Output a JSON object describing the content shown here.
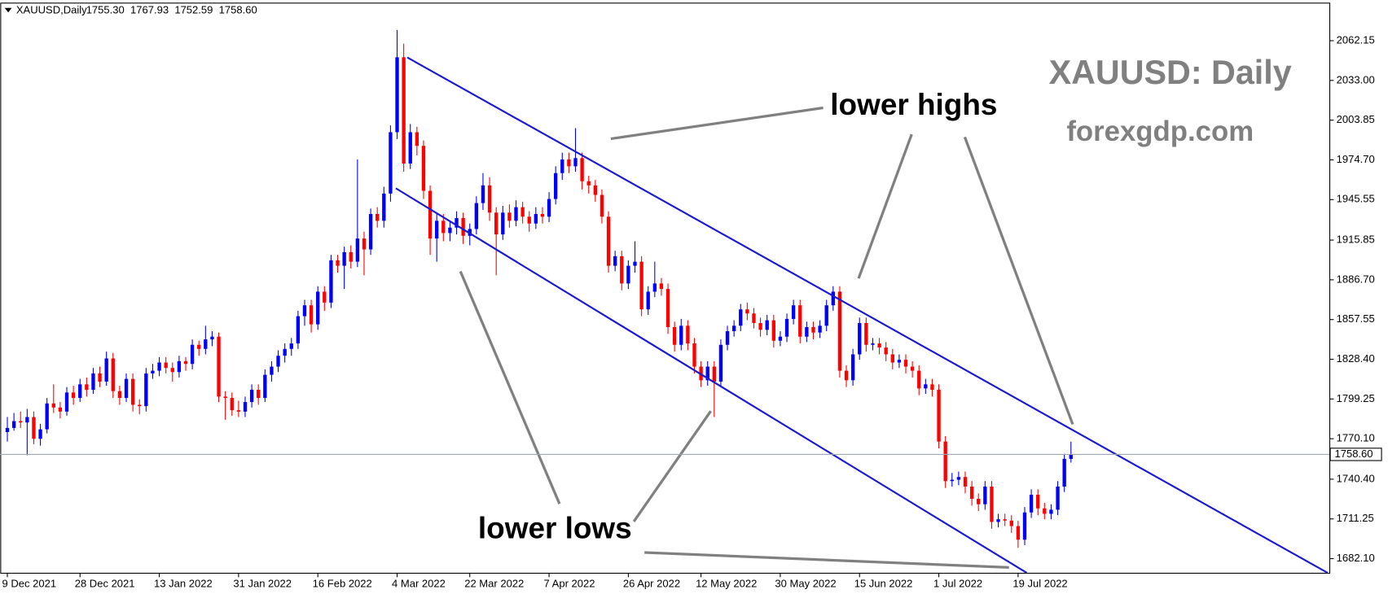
{
  "chart_data": {
    "type": "candlestick",
    "header": {
      "symbol": "XAUUSD,Daily",
      "ohlc": [
        "1755.30",
        "1767.93",
        "1752.59",
        "1758.60"
      ]
    },
    "watermark": {
      "title": "XAUUSD: Daily",
      "site": "forexgdp.com"
    },
    "annotations": [
      "lower highs",
      "lower lows"
    ],
    "up_color": "#0000ff",
    "down_color": "#ff0000",
    "ylim": [
      1671.72,
      2090.07
    ],
    "yticks": [
      {
        "value": 1682.1,
        "label": "1682.10"
      },
      1711.25,
      {
        "value": 1740.4,
        "label": "1740.40"
      },
      {
        "value": 1770.1,
        "label": "1770.10"
      },
      1799.25,
      {
        "value": 1828.4,
        "label": "1828.40"
      },
      1857.55,
      {
        "value": 1886.7,
        "label": "1886.70"
      },
      1915.85,
      1945.55,
      {
        "value": 1974.7,
        "label": "1974.70"
      },
      2003.85,
      {
        "value": 2033,
        "label": "2033.00"
      },
      2062.15
    ],
    "current_price": {
      "value": 1758.6,
      "label": "1758.60"
    },
    "categories": [
      "9 Dec 2021",
      null,
      null,
      null,
      null,
      null,
      null,
      null,
      null,
      null,
      null,
      "28 Dec 2021",
      null,
      null,
      null,
      null,
      null,
      null,
      null,
      null,
      null,
      null,
      null,
      "13 Jan 2022",
      null,
      null,
      null,
      null,
      null,
      null,
      null,
      null,
      null,
      null,
      null,
      "31 Jan 2022",
      null,
      null,
      null,
      null,
      null,
      null,
      null,
      null,
      null,
      null,
      null,
      "16 Feb 2022",
      null,
      null,
      null,
      null,
      null,
      null,
      null,
      null,
      null,
      null,
      null,
      "4 Mar 2022",
      null,
      null,
      null,
      null,
      null,
      null,
      null,
      null,
      null,
      null,
      "22 Mar 2022",
      null,
      null,
      null,
      null,
      null,
      null,
      null,
      null,
      null,
      null,
      null,
      "7 Apr 2022",
      null,
      null,
      null,
      null,
      null,
      null,
      null,
      null,
      null,
      null,
      null,
      "26 Apr 2022",
      null,
      null,
      null,
      null,
      null,
      null,
      null,
      null,
      null,
      null,
      "12 May 2022",
      null,
      null,
      null,
      null,
      null,
      null,
      null,
      null,
      null,
      null,
      null,
      "30 May 2022",
      null,
      null,
      null,
      null,
      null,
      null,
      null,
      null,
      null,
      null,
      null,
      "15 Jun 2022",
      null,
      null,
      null,
      null,
      null,
      null,
      null,
      null,
      null,
      null,
      null,
      "1 Jul 2022",
      null,
      null,
      null,
      null,
      null,
      null,
      null,
      null,
      null,
      null,
      null,
      "19 Jul 2022",
      null,
      null,
      null,
      null,
      null,
      null,
      null,
      null
    ],
    "candles": [
      [
        1775,
        1786,
        1768,
        1778
      ],
      [
        1778,
        1789,
        1776,
        1783
      ],
      [
        1783,
        1790,
        1778,
        1782
      ],
      [
        1782,
        1792,
        1758,
        1786
      ],
      [
        1786,
        1790,
        1766,
        1770
      ],
      [
        1770,
        1781,
        1765,
        1777
      ],
      [
        1777,
        1800,
        1774,
        1796
      ],
      [
        1796,
        1810,
        1789,
        1793
      ],
      [
        1793,
        1797,
        1785,
        1790
      ],
      [
        1790,
        1808,
        1787,
        1804
      ],
      [
        1804,
        1809,
        1795,
        1800
      ],
      [
        1800,
        1814,
        1797,
        1810
      ],
      [
        1810,
        1815,
        1801,
        1806
      ],
      [
        1806,
        1822,
        1803,
        1818
      ],
      [
        1818,
        1823,
        1808,
        1812
      ],
      [
        1812,
        1834,
        1809,
        1829
      ],
      [
        1829,
        1833,
        1800,
        1805
      ],
      [
        1805,
        1809,
        1795,
        1800
      ],
      [
        1800,
        1818,
        1797,
        1814
      ],
      [
        1814,
        1818,
        1790,
        1795
      ],
      [
        1795,
        1799,
        1788,
        1794
      ],
      [
        1794,
        1822,
        1790,
        1818
      ],
      [
        1818,
        1825,
        1814,
        1820
      ],
      [
        1820,
        1830,
        1816,
        1826
      ],
      [
        1826,
        1830,
        1818,
        1822
      ],
      [
        1822,
        1826,
        1812,
        1819
      ],
      [
        1819,
        1831,
        1815,
        1827
      ],
      [
        1827,
        1830,
        1820,
        1825
      ],
      [
        1825,
        1843,
        1821,
        1839
      ],
      [
        1839,
        1842,
        1831,
        1836
      ],
      [
        1836,
        1853,
        1832,
        1843
      ],
      [
        1843,
        1849,
        1838,
        1845
      ],
      [
        1845,
        1848,
        1797,
        1801
      ],
      [
        1801,
        1805,
        1784,
        1800
      ],
      [
        1800,
        1804,
        1787,
        1791
      ],
      [
        1791,
        1798,
        1786,
        1790
      ],
      [
        1790,
        1801,
        1786,
        1797
      ],
      [
        1797,
        1810,
        1793,
        1806
      ],
      [
        1806,
        1810,
        1795,
        1800
      ],
      [
        1800,
        1821,
        1797,
        1817
      ],
      [
        1817,
        1827,
        1812,
        1823
      ],
      [
        1823,
        1835,
        1819,
        1831
      ],
      [
        1831,
        1840,
        1826,
        1836
      ],
      [
        1836,
        1844,
        1831,
        1840
      ],
      [
        1840,
        1864,
        1836,
        1860
      ],
      [
        1860,
        1872,
        1853,
        1868
      ],
      [
        1868,
        1872,
        1848,
        1854
      ],
      [
        1854,
        1882,
        1850,
        1878
      ],
      [
        1878,
        1882,
        1864,
        1870
      ],
      [
        1870,
        1905,
        1866,
        1901
      ],
      [
        1901,
        1905,
        1892,
        1897
      ],
      [
        1897,
        1911,
        1880,
        1907
      ],
      [
        1907,
        1912,
        1895,
        1900
      ],
      [
        1900,
        1975,
        1896,
        1917
      ],
      [
        1917,
        1922,
        1890,
        1909
      ],
      [
        1909,
        1939,
        1905,
        1935
      ],
      [
        1935,
        1940,
        1925,
        1930
      ],
      [
        1930,
        1955,
        1925,
        1950
      ],
      [
        1950,
        2000,
        1944,
        1995
      ],
      [
        1995,
        2070,
        1990,
        2050
      ],
      [
        2050,
        2060,
        1966,
        1972
      ],
      [
        1972,
        2001,
        1968,
        1995
      ],
      [
        1995,
        1999,
        1978,
        1985
      ],
      [
        1985,
        1989,
        1946,
        1952
      ],
      [
        1952,
        1956,
        1905,
        1917
      ],
      [
        1917,
        1936,
        1900,
        1930
      ],
      [
        1930,
        1935,
        1915,
        1921
      ],
      [
        1921,
        1930,
        1915,
        1925
      ],
      [
        1925,
        1937,
        1920,
        1932
      ],
      [
        1932,
        1936,
        1913,
        1919
      ],
      [
        1919,
        1928,
        1912,
        1924
      ],
      [
        1924,
        1948,
        1920,
        1943
      ],
      [
        1943,
        1965,
        1938,
        1956
      ],
      [
        1956,
        1962,
        1930,
        1936
      ],
      [
        1936,
        1940,
        1890,
        1920
      ],
      [
        1920,
        1941,
        1916,
        1936
      ],
      [
        1936,
        1942,
        1925,
        1930
      ],
      [
        1930,
        1945,
        1926,
        1940
      ],
      [
        1940,
        1944,
        1928,
        1933
      ],
      [
        1933,
        1937,
        1922,
        1928
      ],
      [
        1928,
        1940,
        1924,
        1935
      ],
      [
        1935,
        1940,
        1928,
        1933
      ],
      [
        1933,
        1951,
        1929,
        1946
      ],
      [
        1946,
        1970,
        1942,
        1965
      ],
      [
        1965,
        1980,
        1960,
        1975
      ],
      [
        1975,
        1980,
        1965,
        1970
      ],
      [
        1970,
        1998,
        1966,
        1976
      ],
      [
        1976,
        1980,
        1953,
        1959
      ],
      [
        1959,
        1963,
        1950,
        1956
      ],
      [
        1956,
        1960,
        1944,
        1949
      ],
      [
        1949,
        1953,
        1928,
        1933
      ],
      [
        1933,
        1937,
        1892,
        1897
      ],
      [
        1897,
        1908,
        1893,
        1904
      ],
      [
        1904,
        1908,
        1879,
        1884
      ],
      [
        1884,
        1901,
        1880,
        1897
      ],
      [
        1897,
        1915,
        1892,
        1900
      ],
      [
        1900,
        1904,
        1860,
        1865
      ],
      [
        1865,
        1882,
        1861,
        1878
      ],
      [
        1878,
        1900,
        1874,
        1884
      ],
      [
        1884,
        1888,
        1875,
        1880
      ],
      [
        1880,
        1884,
        1847,
        1852
      ],
      [
        1852,
        1856,
        1834,
        1839
      ],
      [
        1839,
        1858,
        1835,
        1853
      ],
      [
        1853,
        1857,
        1835,
        1840
      ],
      [
        1840,
        1844,
        1818,
        1823
      ],
      [
        1823,
        1827,
        1808,
        1813
      ],
      [
        1813,
        1827,
        1809,
        1823
      ],
      [
        1823,
        1827,
        1786,
        1812
      ],
      [
        1812,
        1843,
        1808,
        1839
      ],
      [
        1839,
        1853,
        1835,
        1849
      ],
      [
        1849,
        1857,
        1845,
        1853
      ],
      [
        1853,
        1869,
        1849,
        1865
      ],
      [
        1865,
        1870,
        1857,
        1862
      ],
      [
        1862,
        1866,
        1851,
        1855
      ],
      [
        1855,
        1859,
        1845,
        1850
      ],
      [
        1850,
        1861,
        1846,
        1857
      ],
      [
        1857,
        1861,
        1837,
        1842
      ],
      [
        1842,
        1849,
        1838,
        1845
      ],
      [
        1845,
        1862,
        1841,
        1858
      ],
      [
        1858,
        1872,
        1854,
        1868
      ],
      [
        1868,
        1872,
        1840,
        1845
      ],
      [
        1845,
        1856,
        1841,
        1852
      ],
      [
        1852,
        1856,
        1843,
        1848
      ],
      [
        1848,
        1857,
        1844,
        1853
      ],
      [
        1853,
        1872,
        1849,
        1868
      ],
      [
        1868,
        1882,
        1864,
        1878
      ],
      [
        1878,
        1882,
        1815,
        1820
      ],
      [
        1820,
        1824,
        1808,
        1813
      ],
      [
        1813,
        1836,
        1809,
        1832
      ],
      [
        1832,
        1859,
        1828,
        1855
      ],
      [
        1855,
        1859,
        1834,
        1839
      ],
      [
        1839,
        1844,
        1835,
        1840
      ],
      [
        1840,
        1844,
        1832,
        1837
      ],
      [
        1837,
        1841,
        1827,
        1832
      ],
      [
        1832,
        1836,
        1821,
        1826
      ],
      [
        1826,
        1832,
        1822,
        1828
      ],
      [
        1828,
        1832,
        1818,
        1823
      ],
      [
        1823,
        1827,
        1815,
        1820
      ],
      [
        1820,
        1824,
        1802,
        1807
      ],
      [
        1807,
        1814,
        1803,
        1810
      ],
      [
        1810,
        1814,
        1801,
        1806
      ],
      [
        1806,
        1810,
        1763,
        1768
      ],
      [
        1768,
        1772,
        1734,
        1739
      ],
      [
        1739,
        1745,
        1735,
        1740
      ],
      [
        1740,
        1746,
        1736,
        1742
      ],
      [
        1742,
        1746,
        1730,
        1735
      ],
      [
        1735,
        1739,
        1721,
        1726
      ],
      [
        1726,
        1730,
        1717,
        1722
      ],
      [
        1722,
        1739,
        1718,
        1735
      ],
      [
        1735,
        1739,
        1704,
        1709
      ],
      [
        1709,
        1715,
        1705,
        1711
      ],
      [
        1711,
        1715,
        1706,
        1710
      ],
      [
        1710,
        1714,
        1701,
        1706
      ],
      [
        1706,
        1710,
        1690,
        1696
      ],
      [
        1696,
        1720,
        1692,
        1716
      ],
      [
        1716,
        1733,
        1712,
        1729
      ],
      [
        1729,
        1733,
        1714,
        1719
      ],
      [
        1719,
        1723,
        1711,
        1715
      ],
      [
        1715,
        1722,
        1711,
        1718
      ],
      [
        1718,
        1739,
        1714,
        1735
      ],
      [
        1735,
        1759,
        1731,
        1755.3
      ],
      [
        1755.3,
        1767.93,
        1752.59,
        1758.6
      ]
    ]
  }
}
